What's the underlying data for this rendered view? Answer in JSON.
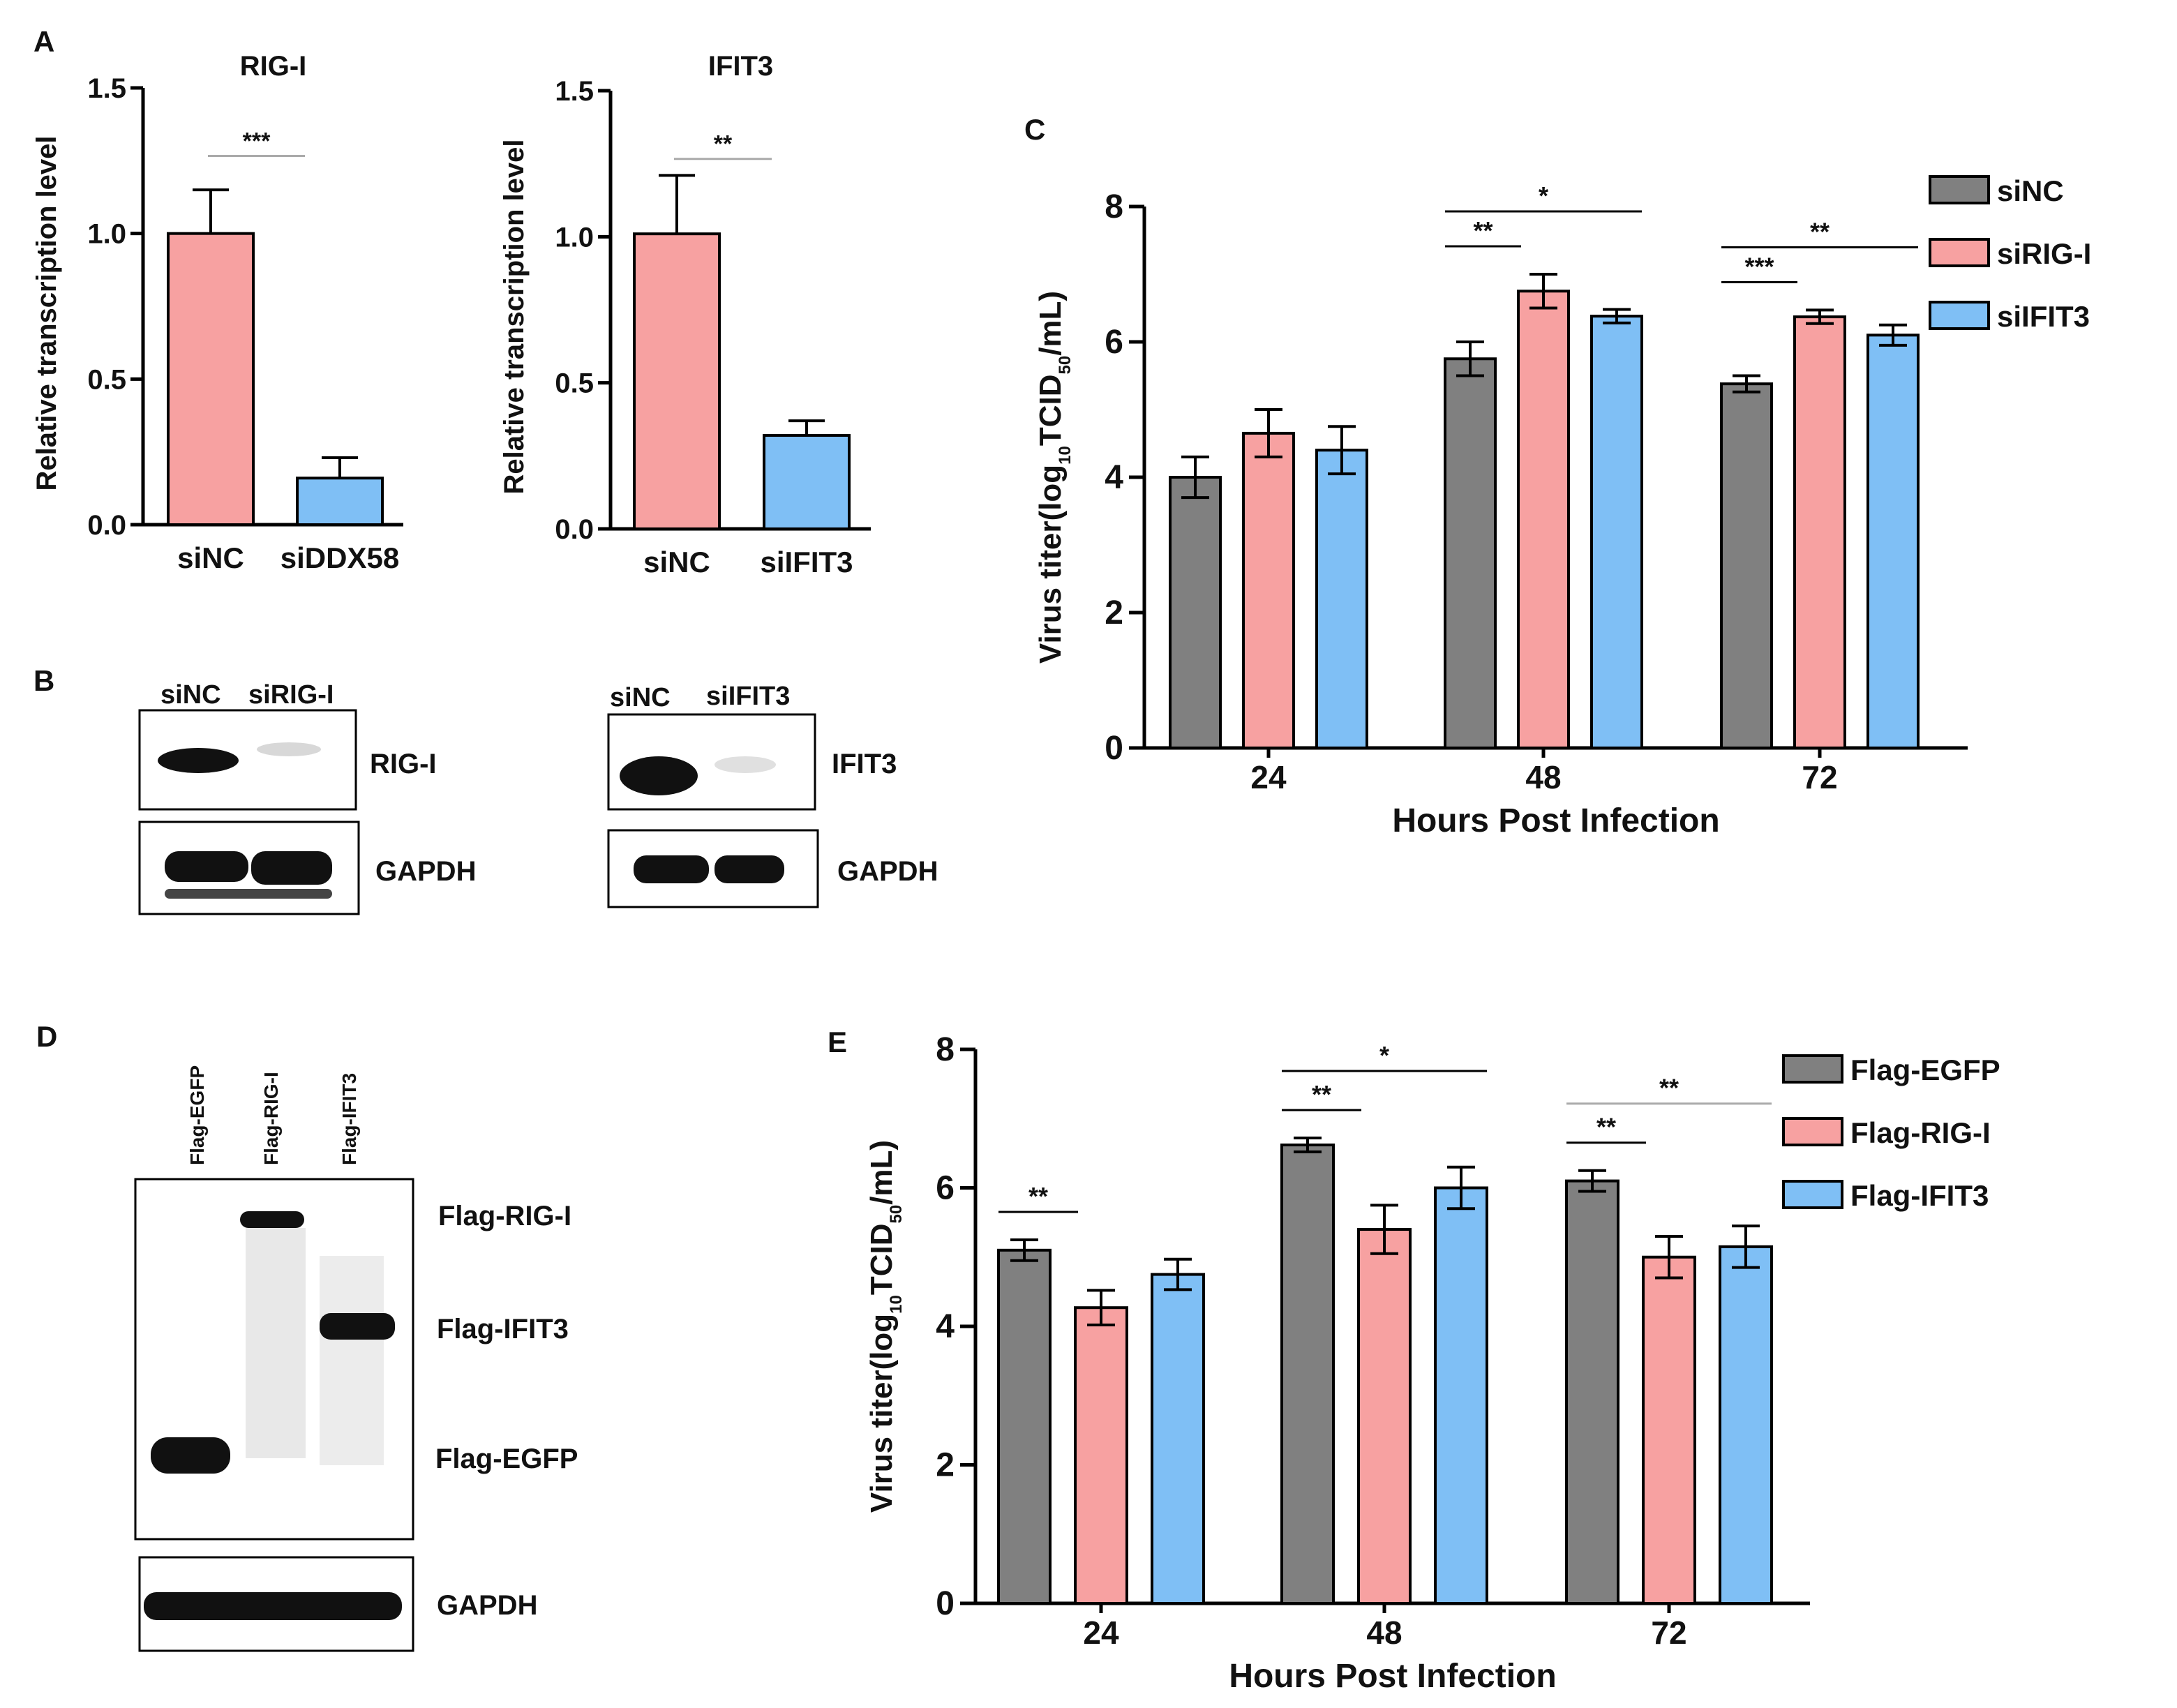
{
  "colors": {
    "siNC_bar": "#f7a1a1",
    "knock_bar": "#7fbff5",
    "gray": "#808080",
    "pink": "#f7a1a1",
    "blue": "#7fbff5"
  },
  "panel_letters": {
    "A": "A",
    "B": "B",
    "C": "C",
    "D": "D",
    "E": "E"
  },
  "chart_data": [
    {
      "id": "A1",
      "type": "bar",
      "title": "RIG-I",
      "ylabel": "Relative transcription level",
      "xlabel": "",
      "categories": [
        "siNC",
        "siDDX58"
      ],
      "values": [
        1.0,
        0.16
      ],
      "errors": [
        0.15,
        0.07
      ],
      "ylim": [
        0,
        1.5
      ],
      "yticks": [
        "0.0",
        "0.5",
        "1.0",
        "1.5"
      ],
      "significance": [
        {
          "label": "***",
          "from": 0,
          "to": 1
        }
      ]
    },
    {
      "id": "A2",
      "type": "bar",
      "title": "IFIT3",
      "ylabel": "Relative transcription level",
      "xlabel": "",
      "categories": [
        "siNC",
        "siIFIT3"
      ],
      "values": [
        1.01,
        0.32
      ],
      "errors": [
        0.2,
        0.05
      ],
      "ylim": [
        0,
        1.5
      ],
      "yticks": [
        "0.0",
        "0.5",
        "1.0",
        "1.5"
      ],
      "significance": [
        {
          "label": "**",
          "from": 0,
          "to": 1
        }
      ]
    },
    {
      "id": "C",
      "type": "bar",
      "title": "",
      "ylabel": "Virus titer(log10TCID50/mL)",
      "xlabel": "Hours Post Infection",
      "categories": [
        "24",
        "48",
        "72"
      ],
      "series": [
        {
          "name": "siNC",
          "values": [
            4.0,
            5.75,
            5.38
          ],
          "errors": [
            0.3,
            0.25,
            0.12
          ]
        },
        {
          "name": "siRIG-I",
          "values": [
            4.65,
            6.75,
            6.37
          ],
          "errors": [
            0.35,
            0.25,
            0.1
          ]
        },
        {
          "name": "siIFIT3",
          "values": [
            4.4,
            6.38,
            6.1
          ],
          "errors": [
            0.35,
            0.1,
            0.15
          ]
        }
      ],
      "ylim": [
        0,
        8
      ],
      "yticks": [
        "0",
        "2",
        "4",
        "6",
        "8"
      ],
      "legend": "top-right",
      "significance": [
        {
          "group": 1,
          "from": 0,
          "to": 1,
          "label": "**",
          "level": 1
        },
        {
          "group": 1,
          "from": 0,
          "to": 2,
          "label": "*",
          "level": 2
        },
        {
          "group": 2,
          "from": 0,
          "to": 1,
          "label": "***",
          "level": 1
        },
        {
          "group": 2,
          "from": 0,
          "to": 2,
          "label": "**",
          "level": 2
        }
      ]
    },
    {
      "id": "E",
      "type": "bar",
      "title": "",
      "ylabel": "Virus titer(log10TCID50/mL)",
      "xlabel": "Hours Post Infection",
      "categories": [
        "24",
        "48",
        "72"
      ],
      "series": [
        {
          "name": "Flag-EGFP",
          "values": [
            5.1,
            6.62,
            6.1
          ],
          "errors": [
            0.15,
            0.1,
            0.15
          ]
        },
        {
          "name": "Flag-RIG-I",
          "values": [
            4.27,
            5.4,
            5.0
          ],
          "errors": [
            0.25,
            0.35,
            0.3
          ]
        },
        {
          "name": "Flag-IFIT3",
          "values": [
            4.75,
            6.0,
            5.15
          ],
          "errors": [
            0.22,
            0.3,
            0.3
          ]
        }
      ],
      "ylim": [
        0,
        8
      ],
      "yticks": [
        "0",
        "2",
        "4",
        "6",
        "8"
      ],
      "legend": "top-right",
      "significance": [
        {
          "group": 0,
          "from": 0,
          "to": 1,
          "label": "**",
          "level": 1
        },
        {
          "group": 1,
          "from": 0,
          "to": 1,
          "label": "**",
          "level": 1
        },
        {
          "group": 1,
          "from": 0,
          "to": 2,
          "label": "*",
          "level": 2
        },
        {
          "group": 2,
          "from": 0,
          "to": 1,
          "label": "**",
          "level": 1
        },
        {
          "group": 2,
          "from": 0,
          "to": 2,
          "label": "**",
          "level": 2
        }
      ]
    }
  ],
  "blots": {
    "B_left": {
      "lanes": [
        "siNC",
        "siRIG-I"
      ],
      "target": "RIG-I",
      "loading": "GAPDH"
    },
    "B_right": {
      "lanes": [
        "siNC",
        "siIFIT3"
      ],
      "target": "IFIT3",
      "loading": "GAPDH"
    },
    "D": {
      "lanes": [
        "Flag-EGFP",
        "Flag-RIG-I",
        "Flag-IFIT3"
      ],
      "bands": [
        "Flag-RIG-I",
        "Flag-IFIT3",
        "Flag-EGFP"
      ],
      "loading": "GAPDH"
    }
  }
}
